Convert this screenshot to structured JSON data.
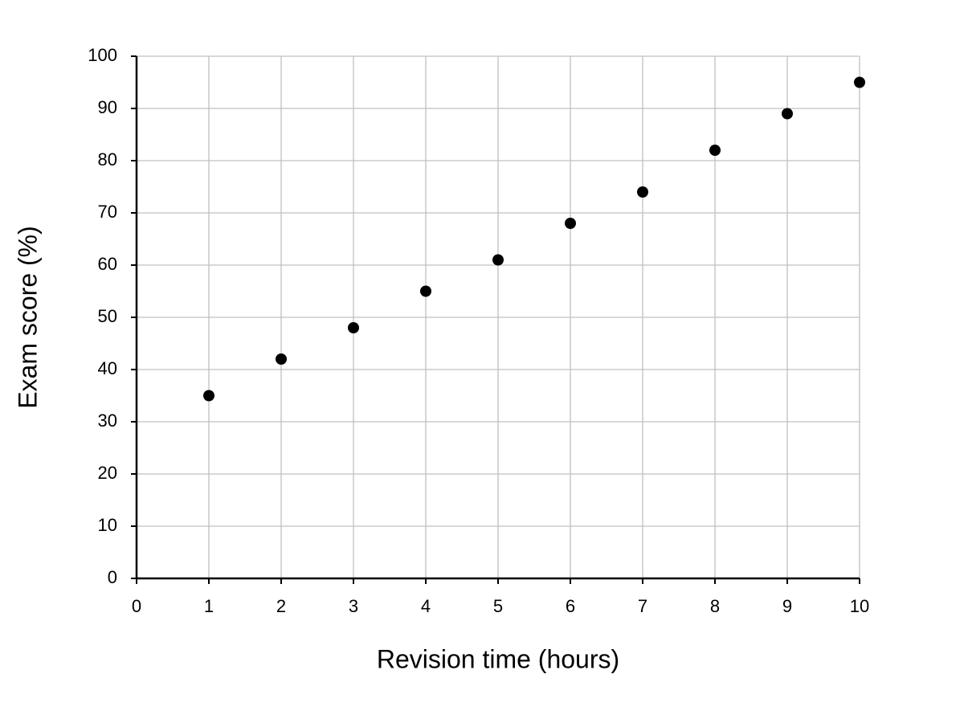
{
  "chart_data": {
    "type": "scatter",
    "x_label": "Revision time (hours)",
    "y_label": "Exam score (%)",
    "x": [
      1,
      2,
      3,
      4,
      5,
      6,
      7,
      8,
      9,
      10
    ],
    "values": [
      35,
      42,
      48,
      55,
      61,
      68,
      74,
      82,
      89,
      95
    ],
    "color": "#000000",
    "xlim": [
      0,
      10
    ],
    "xticks": [
      0,
      1,
      2,
      3,
      4,
      5,
      6,
      7,
      8,
      9,
      10
    ],
    "ylim": [
      0,
      100
    ],
    "yticks": [
      0,
      10,
      20,
      30,
      40,
      50,
      60,
      70,
      80,
      90,
      100
    ],
    "grid": true
  }
}
